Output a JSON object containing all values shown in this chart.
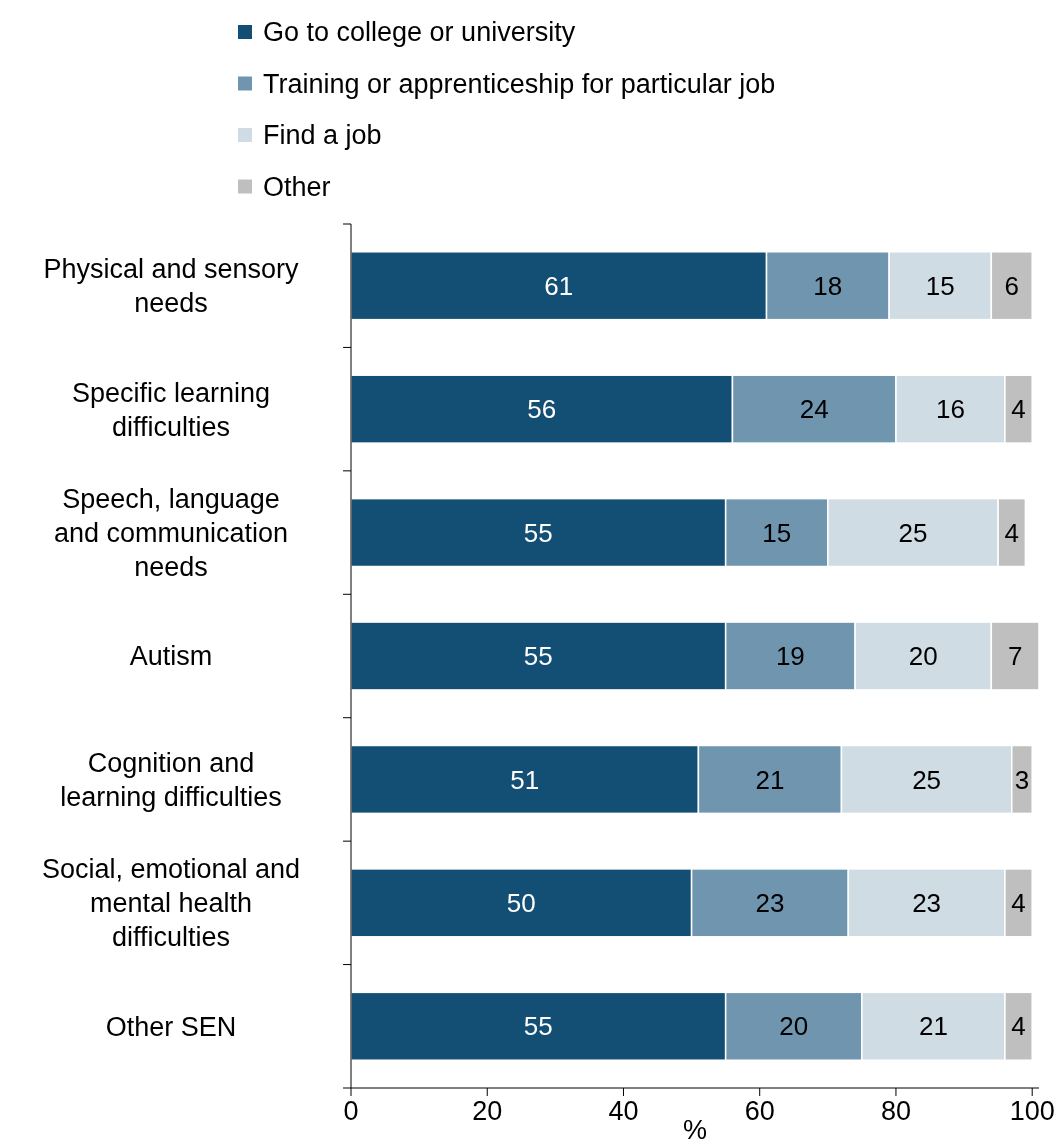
{
  "chart_data": {
    "type": "bar",
    "orientation": "horizontal",
    "stacked": true,
    "data_labels": true,
    "legend": "top",
    "xlabel": "%",
    "categories": [
      "Physical and sensory needs",
      "Specific learning difficulties",
      "Speech, language and communication needs",
      "Autism",
      "Cognition and learning difficulties",
      "Social, emotional and mental health difficulties",
      "Other SEN"
    ],
    "xlim": [
      0,
      101
    ],
    "xticks": [
      0,
      20,
      40,
      60,
      80,
      100
    ],
    "series": [
      {
        "name": "Go to college or university",
        "color": "#134f74",
        "values": [
          61,
          56,
          55,
          55,
          51,
          50,
          55
        ]
      },
      {
        "name": "Training or apprenticeship for particular job",
        "color": "#6f95af",
        "values": [
          18,
          24,
          15,
          19,
          21,
          23,
          20
        ]
      },
      {
        "name": "Find a job",
        "color": "#d0dce4",
        "values": [
          15,
          16,
          25,
          20,
          25,
          23,
          21
        ]
      },
      {
        "name": "Other",
        "color": "#bfbfbf",
        "values": [
          6,
          4,
          4,
          7,
          3,
          4,
          4
        ]
      }
    ]
  }
}
